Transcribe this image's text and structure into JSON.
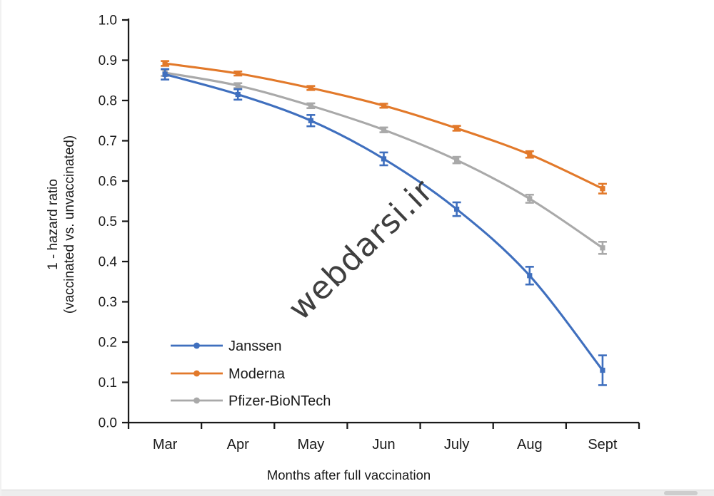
{
  "page": {
    "background": "#ffffff"
  },
  "watermark": {
    "text": "webdarsi.ir",
    "color": "#2f2f2f",
    "rotation_deg": -44
  },
  "chart_data": {
    "type": "line",
    "title": "",
    "categories": [
      "Mar",
      "Apr",
      "May",
      "Jun",
      "July",
      "Aug",
      "Sept"
    ],
    "xlabel": "Months after full vaccination",
    "ylabel_lines": [
      "1 - hazard ratio",
      "(vaccinated vs. unvaccinated)"
    ],
    "ylim": [
      0.0,
      1.0
    ],
    "yticks": [
      "0.0",
      "0.1",
      "0.2",
      "0.3",
      "0.4",
      "0.5",
      "0.6",
      "0.7",
      "0.8",
      "0.9",
      "1.0"
    ],
    "grid": false,
    "legend_position": "inside-bottom-left",
    "axis_color": "#1a1a1a",
    "text_color": "#1a1a1a",
    "series": [
      {
        "name": "Janssen",
        "color": "#3f6fbe",
        "values": [
          0.865,
          0.815,
          0.75,
          0.655,
          0.53,
          0.365,
          0.13
        ],
        "errors": [
          0.013,
          0.013,
          0.014,
          0.016,
          0.017,
          0.022,
          0.037
        ]
      },
      {
        "name": "Moderna",
        "color": "#e2792a",
        "values": [
          0.892,
          0.867,
          0.831,
          0.787,
          0.731,
          0.666,
          0.581
        ],
        "errors": [
          0.006,
          0.005,
          0.005,
          0.005,
          0.006,
          0.008,
          0.012
        ]
      },
      {
        "name": "Pfizer-BioNTech",
        "color": "#a9a9a9",
        "values": [
          0.869,
          0.837,
          0.787,
          0.727,
          0.652,
          0.556,
          0.434
        ],
        "errors": [
          0.008,
          0.006,
          0.006,
          0.006,
          0.008,
          0.01,
          0.015
        ]
      }
    ]
  },
  "scrollbar": {
    "orientation": "horizontal"
  }
}
